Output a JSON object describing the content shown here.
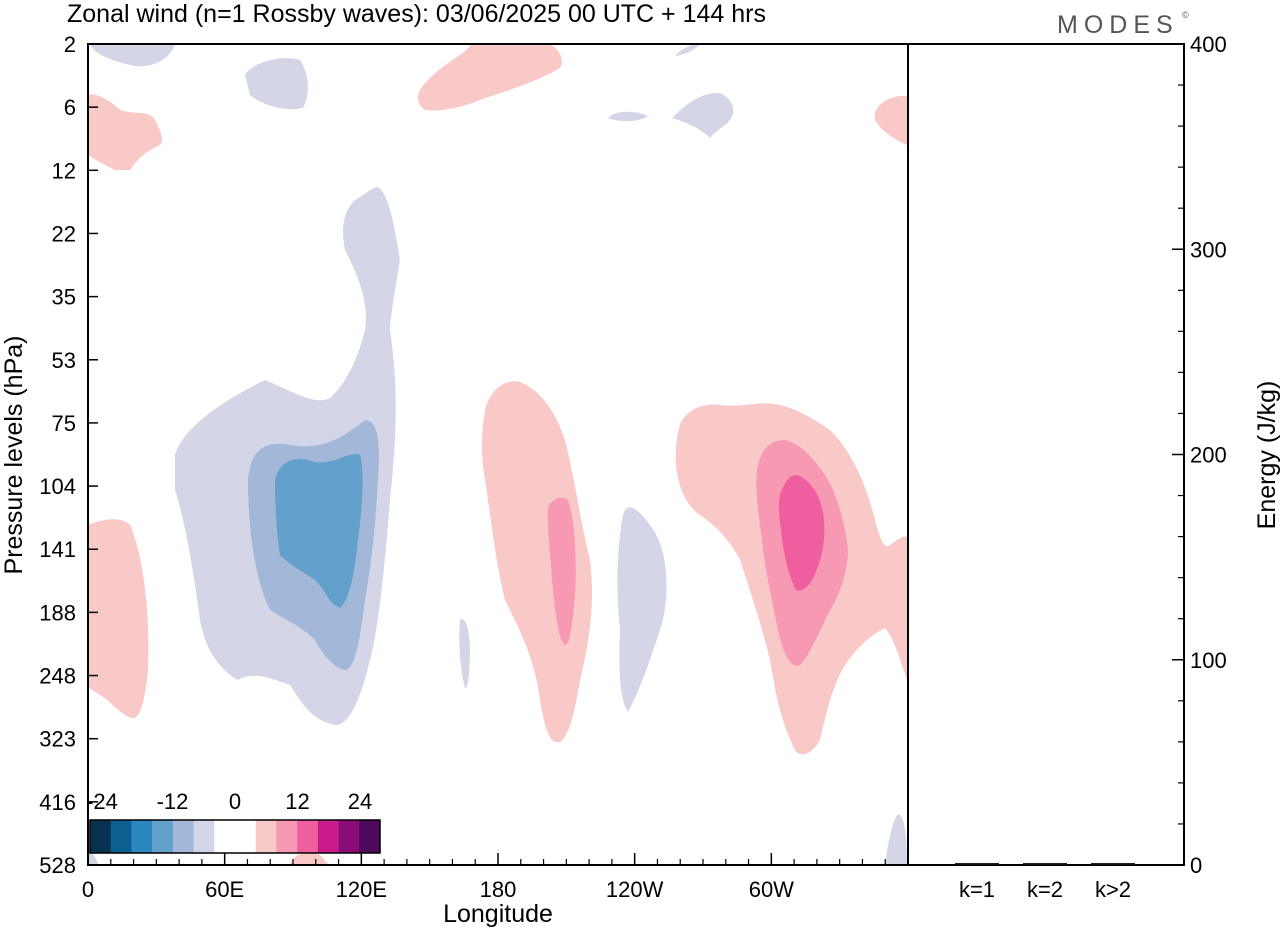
{
  "title": "Zonal wind (n=1 Rossby waves):  03/06/2025  00 UTC  + 144 hrs",
  "logo": "MODES",
  "logo_mark": "©",
  "colors": {
    "neg4": "#a3b8d9",
    "neg5": "#d4d6e8",
    "neg3": "#63a1cc",
    "pos5": "#f9c9c7",
    "pos4": "#f799b3",
    "pos3": "#ef5fa0"
  },
  "chart_data": [
    {
      "type": "heatmap",
      "title": "Zonal wind (n=1 Rossby waves):  03/06/2025  00 UTC  + 144 hrs",
      "xlabel": "Longitude",
      "ylabel": "Pressure levels (hPa)",
      "x_ticks": [
        "0",
        "60E",
        "120E",
        "180",
        "120W",
        "60W"
      ],
      "x_range_deg": [
        0,
        360
      ],
      "y_ticks": [
        "2",
        "6",
        "12",
        "22",
        "35",
        "53",
        "75",
        "104",
        "141",
        "188",
        "248",
        "323",
        "416",
        "528"
      ],
      "colorbar": {
        "tick_labels": [
          "-24",
          "-12",
          "0",
          "12",
          "24"
        ],
        "colors": [
          "#08304f",
          "#0c5f91",
          "#2b87c0",
          "#63a1cc",
          "#a3b8d9",
          "#d4d6e8",
          "#ffffff",
          "#ffffff",
          "#f9c9c7",
          "#f799b3",
          "#ef5fa0",
          "#c81a8c",
          "#8a0c78",
          "#4d0a5c"
        ]
      },
      "features": [
        {
          "sign": "negative",
          "center_lon": 105,
          "center_level_hPa": 141,
          "min_value": -12
        },
        {
          "sign": "positive",
          "center_lon": 200,
          "center_level_hPa": 141,
          "max_value": 8
        },
        {
          "sign": "negative",
          "center_lon": 240,
          "center_level_hPa": 188,
          "min_value": -4
        },
        {
          "sign": "positive",
          "center_lon": 300,
          "center_level_hPa": 141,
          "max_value": 12
        },
        {
          "sign": "positive",
          "center_lon": 15,
          "center_level_hPa": 188,
          "max_value": 4
        }
      ]
    },
    {
      "type": "bar",
      "ylabel": "Energy (J/kg)",
      "categories": [
        "k=1",
        "k=2",
        "k>2"
      ],
      "values": [
        0.5,
        0.5,
        0.5
      ],
      "ylim": [
        0,
        400
      ],
      "y_ticks": [
        "0",
        "100",
        "200",
        "300",
        "400"
      ]
    }
  ]
}
